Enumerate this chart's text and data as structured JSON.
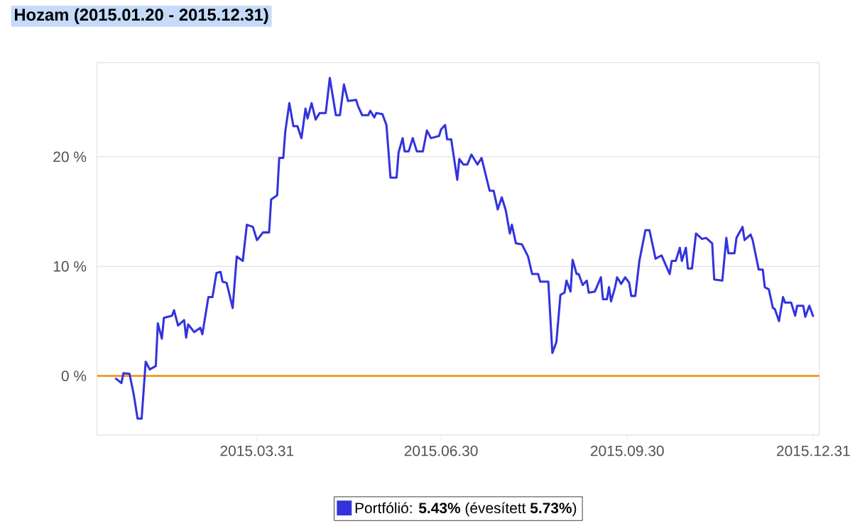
{
  "chart_data": {
    "type": "line",
    "title": "Hozam (2015.01.20 - 2015.12.31)",
    "x": [
      "2015-01-20",
      "2015-01-23",
      "2015-01-24",
      "2015-01-27",
      "2015-01-29",
      "2015-01-31",
      "2015-02-02",
      "2015-02-04",
      "2015-02-06",
      "2015-02-09",
      "2015-02-10",
      "2015-02-12",
      "2015-02-13",
      "2015-02-17",
      "2015-02-18",
      "2015-02-20",
      "2015-02-23",
      "2015-02-24",
      "2015-02-25",
      "2015-02-28",
      "2015-03-03",
      "2015-03-04",
      "2015-03-07",
      "2015-03-09",
      "2015-03-11",
      "2015-03-13",
      "2015-03-14",
      "2015-03-16",
      "2015-03-19",
      "2015-03-21",
      "2015-03-24",
      "2015-03-26",
      "2015-03-29",
      "2015-03-31",
      "2015-04-03",
      "2015-04-06",
      "2015-04-07",
      "2015-04-10",
      "2015-04-11",
      "2015-04-13",
      "2015-04-14",
      "2015-04-16",
      "2015-04-18",
      "2015-04-20",
      "2015-04-22",
      "2015-04-24",
      "2015-04-25",
      "2015-04-27",
      "2015-04-29",
      "2015-05-01",
      "2015-05-04",
      "2015-05-06",
      "2015-05-09",
      "2015-05-11",
      "2015-05-13",
      "2015-05-15",
      "2015-05-19",
      "2015-05-20",
      "2015-05-22",
      "2015-05-25",
      "2015-05-26",
      "2015-05-28",
      "2015-05-29",
      "2015-06-01",
      "2015-06-03",
      "2015-06-05",
      "2015-06-08",
      "2015-06-09",
      "2015-06-11",
      "2015-06-12",
      "2015-06-14",
      "2015-06-16",
      "2015-06-18",
      "2015-06-21",
      "2015-06-23",
      "2015-06-25",
      "2015-06-29",
      "2015-06-30",
      "2015-07-02",
      "2015-07-03",
      "2015-07-05",
      "2015-07-08",
      "2015-07-09",
      "2015-07-11",
      "2015-07-13",
      "2015-07-15",
      "2015-07-18",
      "2015-07-20",
      "2015-07-24",
      "2015-07-26",
      "2015-07-28",
      "2015-07-30",
      "2015-08-01",
      "2015-08-03",
      "2015-08-04",
      "2015-08-06",
      "2015-08-09",
      "2015-08-12",
      "2015-08-14",
      "2015-08-17",
      "2015-08-18",
      "2015-08-22",
      "2015-08-24",
      "2015-08-26",
      "2015-08-28",
      "2015-08-30",
      "2015-08-31",
      "2015-09-02",
      "2015-09-03",
      "2015-09-05",
      "2015-09-06",
      "2015-09-08",
      "2015-09-10",
      "2015-09-11",
      "2015-09-14",
      "2015-09-17",
      "2015-09-18",
      "2015-09-20",
      "2015-09-21",
      "2015-09-22",
      "2015-09-24",
      "2015-09-25",
      "2015-09-27",
      "2015-09-29",
      "2015-10-01",
      "2015-10-02",
      "2015-10-04",
      "2015-10-06",
      "2015-10-09",
      "2015-10-11",
      "2015-10-14",
      "2015-10-17",
      "2015-10-21",
      "2015-10-22",
      "2015-10-24",
      "2015-10-26",
      "2015-10-27",
      "2015-10-29",
      "2015-10-30",
      "2015-11-01",
      "2015-11-03",
      "2015-11-06",
      "2015-11-08",
      "2015-11-11",
      "2015-11-12",
      "2015-11-16",
      "2015-11-18",
      "2015-11-19",
      "2015-11-22",
      "2015-11-23",
      "2015-11-26",
      "2015-11-27",
      "2015-11-30",
      "2015-12-01",
      "2015-12-04",
      "2015-12-06",
      "2015-12-07",
      "2015-12-09",
      "2015-12-11",
      "2015-12-12",
      "2015-12-14",
      "2015-12-16",
      "2015-12-17",
      "2015-12-20",
      "2015-12-22",
      "2015-12-23",
      "2015-12-26",
      "2015-12-27",
      "2015-12-29",
      "2015-12-31"
    ],
    "series": [
      {
        "name": "Portfólió: **5.43%** (évesített **5.73%**)",
        "color": "#3333dd",
        "values": [
          -0.2,
          -0.65,
          0.25,
          0.2,
          -1.6,
          -3.9,
          -3.9,
          1.3,
          0.6,
          0.9,
          4.8,
          3.4,
          5.3,
          5.5,
          6.0,
          4.6,
          5.1,
          3.5,
          4.7,
          4.0,
          4.4,
          3.8,
          7.2,
          7.2,
          9.4,
          9.5,
          8.6,
          8.5,
          6.2,
          10.9,
          10.5,
          13.8,
          13.6,
          12.4,
          13.1,
          13.1,
          16.1,
          16.5,
          19.9,
          19.9,
          22.3,
          24.9,
          22.8,
          22.8,
          21.7,
          24.4,
          23.5,
          24.9,
          23.4,
          24.0,
          24.0,
          27.2,
          23.8,
          23.8,
          26.6,
          25.1,
          25.2,
          24.6,
          23.8,
          23.8,
          24.2,
          23.6,
          24.0,
          23.9,
          22.9,
          18.1,
          18.1,
          20.4,
          21.7,
          20.5,
          20.5,
          21.7,
          20.5,
          20.5,
          22.4,
          21.7,
          21.9,
          22.5,
          22.9,
          21.6,
          21.6,
          17.9,
          19.8,
          19.3,
          19.3,
          20.2,
          19.3,
          19.9,
          16.9,
          16.9,
          15.2,
          16.3,
          15.1,
          13.0,
          13.8,
          12.1,
          12.0,
          10.9,
          9.3,
          9.3,
          8.6,
          8.6,
          2.1,
          3.1,
          7.4,
          7.6,
          8.7,
          7.7,
          10.6,
          9.3,
          9.3,
          8.3,
          8.7,
          7.6,
          7.7,
          9.0,
          7.0,
          7.0,
          8.1,
          6.8,
          8.1,
          9.0,
          8.4,
          9.0,
          8.5,
          7.3,
          7.3,
          10.5,
          13.3,
          13.3,
          10.7,
          11.0,
          9.3,
          10.5,
          10.5,
          11.7,
          10.5,
          11.7,
          9.8,
          9.8,
          13.0,
          12.5,
          12.6,
          12.1,
          8.8,
          8.7,
          12.6,
          11.2,
          11.2,
          12.6,
          13.6,
          12.4,
          12.9,
          12.4,
          9.7,
          9.7,
          8.1,
          7.9,
          6.2,
          6.1,
          5.0,
          7.2,
          6.7,
          6.7,
          5.5,
          6.4,
          6.4,
          5.4,
          6.4,
          5.4
        ]
      }
    ],
    "xlim": [
      "2015-01-11",
      "2016-01-03"
    ],
    "xticks": [
      {
        "value": "2015-03-31",
        "label": "2015.03.31"
      },
      {
        "value": "2015-06-30",
        "label": "2015.06.30"
      },
      {
        "value": "2015-09-30",
        "label": "2015.09.30"
      },
      {
        "value": "2015-12-31",
        "label": "2015.12.31"
      }
    ],
    "ylim": [
      -5.4,
      28.6
    ],
    "yticks": [
      {
        "value": 0,
        "label": "0 %"
      },
      {
        "value": 10,
        "label": "10 %"
      },
      {
        "value": 20,
        "label": "20 %"
      }
    ],
    "ref_lines": [
      {
        "axis": "y",
        "value": 0,
        "color": "#f0a030"
      }
    ],
    "grid": "y",
    "legend": "bottom"
  }
}
